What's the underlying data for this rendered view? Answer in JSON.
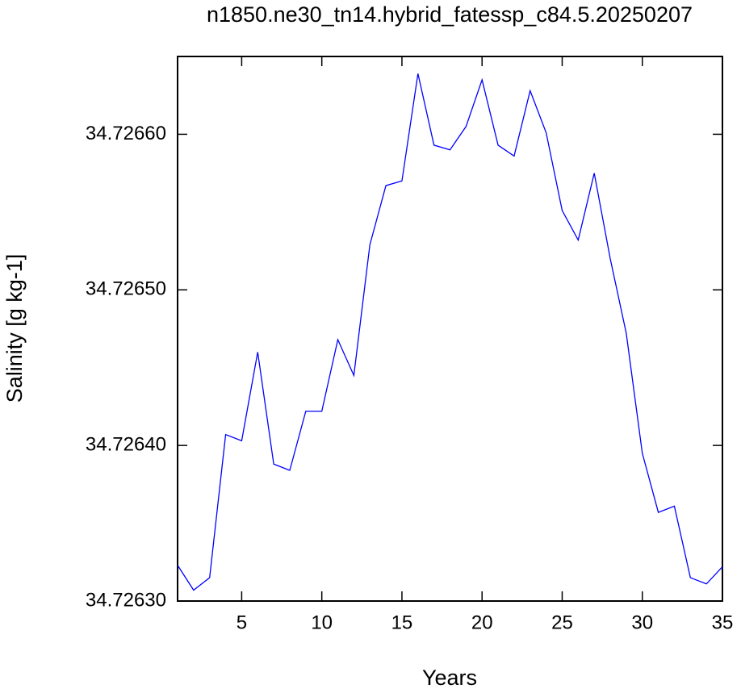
{
  "chart_data": {
    "type": "line",
    "title": "n1850.ne30_tn14.hybrid_fatessp_c84.5.20250207",
    "x_label": "Years",
    "y_label": "Salinity [g kg-1]",
    "x": [
      1,
      2,
      3,
      4,
      5,
      6,
      7,
      8,
      9,
      10,
      11,
      12,
      13,
      14,
      15,
      16,
      17,
      18,
      19,
      20,
      21,
      22,
      23,
      24,
      25,
      26,
      27,
      28,
      29,
      30,
      31,
      32,
      33,
      34,
      35
    ],
    "series": [
      {
        "color": "#0000ff",
        "values": [
          34.726323,
          34.726307,
          34.726315,
          34.726407,
          34.726403,
          34.72646,
          34.726388,
          34.726384,
          34.726422,
          34.726422,
          34.726468,
          34.726445,
          34.726529,
          34.726567,
          34.72657,
          34.726639,
          34.726593,
          34.72659,
          34.726605,
          34.726635,
          34.726593,
          34.726586,
          34.726628,
          34.726601,
          34.726551,
          34.726532,
          34.726575,
          34.72652,
          34.726472,
          34.726395,
          34.726357,
          34.726361,
          34.726315,
          34.726311,
          34.726322
        ]
      }
    ],
    "xlim": [
      1,
      35
    ],
    "xticks": [
      5,
      10,
      15,
      20,
      25,
      30,
      35
    ],
    "ylim": [
      34.7263,
      34.72665
    ],
    "yticks": [
      {
        "value": 34.7263,
        "label": "34.72630"
      },
      {
        "value": 34.7264,
        "label": "34.72640"
      },
      {
        "value": 34.7265,
        "label": "34.72650"
      },
      {
        "value": 34.7266,
        "label": "34.72660"
      }
    ],
    "grid": false
  }
}
